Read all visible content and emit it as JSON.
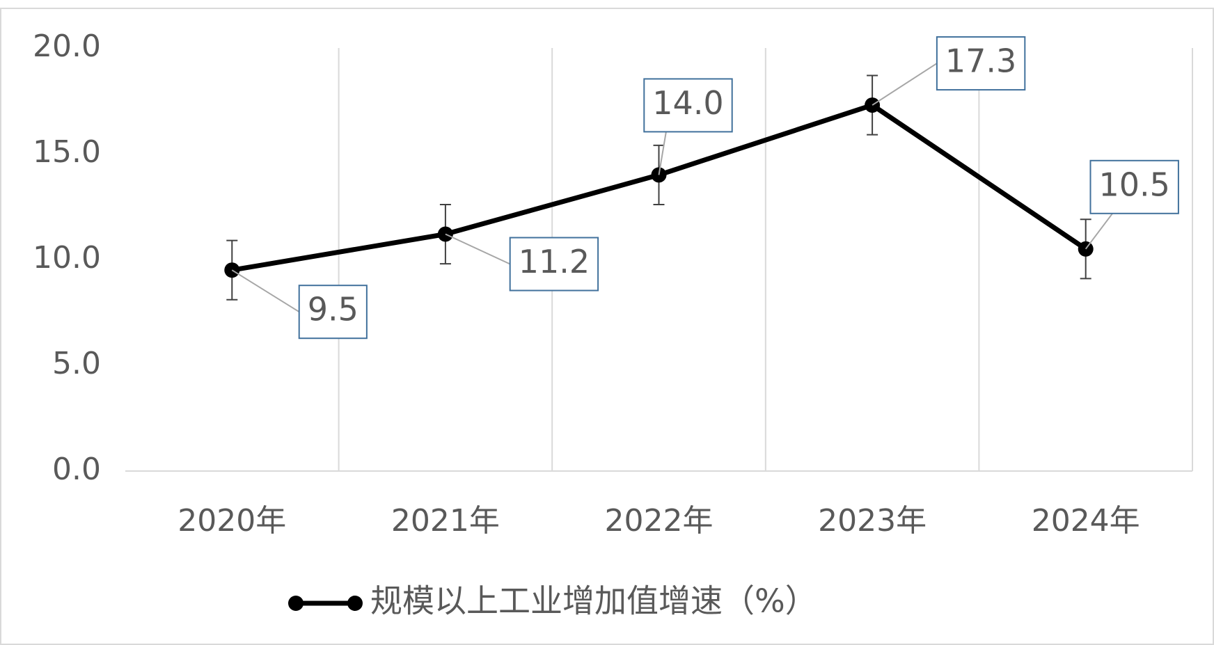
{
  "chart_data": {
    "type": "line",
    "categories": [
      "2020年",
      "2021年",
      "2022年",
      "2023年",
      "2024年"
    ],
    "series": [
      {
        "name": "规模以上工业增加值增速（%）",
        "color": "#000000",
        "values": [
          9.5,
          11.2,
          14.0,
          17.3,
          10.5
        ],
        "value_labels": [
          "9.5",
          "11.2",
          "14.0",
          "17.3",
          "10.5"
        ],
        "errors": [
          1.4,
          1.4,
          1.4,
          1.4,
          1.4
        ]
      }
    ],
    "ylim": [
      0,
      20
    ],
    "yticks": [
      {
        "value": 0,
        "label": "0.0"
      },
      {
        "value": 5,
        "label": "5.0"
      },
      {
        "value": 10,
        "label": "10.0"
      },
      {
        "value": 15,
        "label": "15.0"
      },
      {
        "value": 20,
        "label": "20.0"
      }
    ],
    "grid": true,
    "legend": "bottom"
  }
}
